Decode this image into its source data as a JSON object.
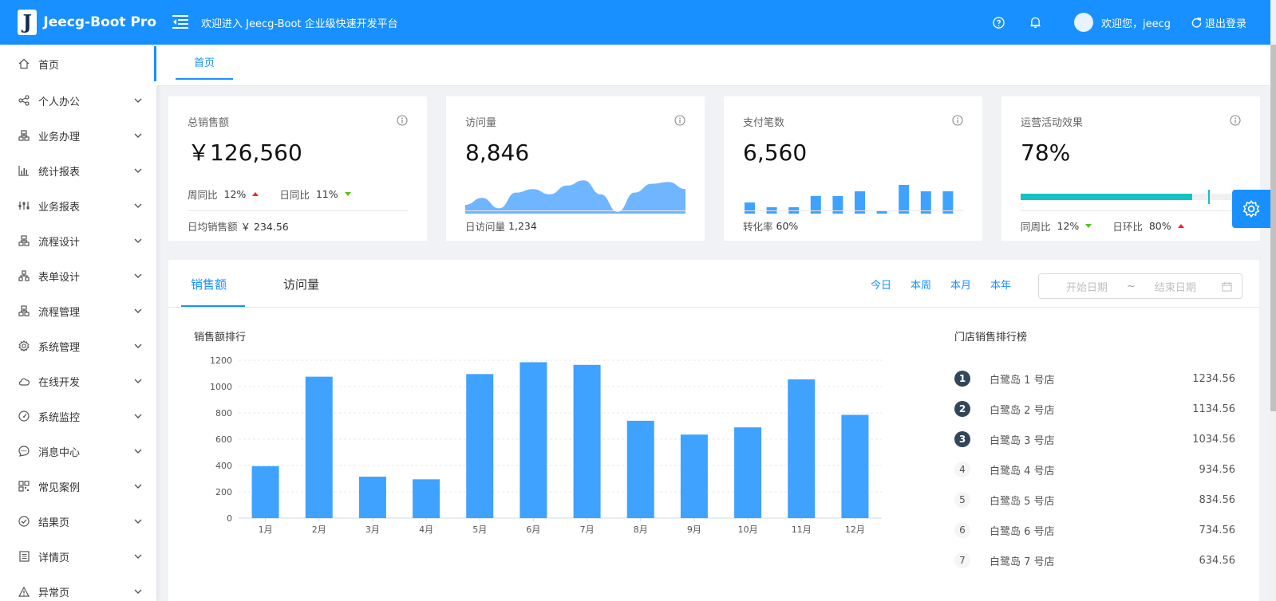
{
  "header": {
    "logo_letter": "J",
    "app_name": "Jeecg-Boot Pro",
    "welcome": "欢迎进入 Jeecg-Boot 企业级快速开发平台",
    "user_greeting": "欢迎您，jeecg",
    "logout": "退出登录",
    "icons": [
      "menu-fold-icon",
      "question-circle-icon",
      "bell-icon",
      "logout-icon"
    ]
  },
  "sidebar": {
    "items": [
      {
        "label": "首页",
        "icon": "home-icon",
        "active": true
      },
      {
        "label": "个人办公",
        "icon": "share-icon"
      },
      {
        "label": "业务办理",
        "icon": "cluster-icon"
      },
      {
        "label": "统计报表",
        "icon": "bar-chart-icon"
      },
      {
        "label": "业务报表",
        "icon": "sliders-icon"
      },
      {
        "label": "流程设计",
        "icon": "cluster-icon"
      },
      {
        "label": "表单设计",
        "icon": "apartment-icon"
      },
      {
        "label": "流程管理",
        "icon": "cluster-icon"
      },
      {
        "label": "系统管理",
        "icon": "setting-icon"
      },
      {
        "label": "在线开发",
        "icon": "cloud-icon"
      },
      {
        "label": "系统监控",
        "icon": "dashboard-icon"
      },
      {
        "label": "消息中心",
        "icon": "message-icon"
      },
      {
        "label": "常见案例",
        "icon": "qrcode-icon"
      },
      {
        "label": "结果页",
        "icon": "check-circle-icon"
      },
      {
        "label": "详情页",
        "icon": "profile-icon"
      },
      {
        "label": "异常页",
        "icon": "warning-icon"
      }
    ]
  },
  "tabs": {
    "home": "首页"
  },
  "cards": {
    "sales": {
      "title": "总销售额",
      "value": "￥126,560",
      "wow_label": "周同比",
      "wow_value": "12%",
      "dod_label": "日同比",
      "dod_value": "11%",
      "footer_label": "日均销售额",
      "footer_value": "￥ 234.56"
    },
    "visits": {
      "title": "访问量",
      "value": "8,846",
      "footer_label": "日访问量",
      "footer_value": "1,234",
      "sparkline": [
        5,
        9,
        3,
        12,
        14,
        11,
        16,
        19,
        11,
        1,
        12,
        17,
        18,
        14
      ]
    },
    "payments": {
      "title": "支付笔数",
      "value": "6,560",
      "footer_label": "转化率",
      "footer_value": "60%",
      "bars": [
        7,
        4,
        4,
        11,
        11,
        14,
        2,
        18,
        14,
        14
      ]
    },
    "ops": {
      "title": "运营活动效果",
      "value": "78%",
      "progress": 0.78,
      "target": 0.85,
      "wow_label": "同周比",
      "wow_value": "12%",
      "dod_label": "日环比",
      "dod_value": "80%",
      "progress_color": "#13c2c2"
    }
  },
  "panel": {
    "tabs": [
      "销售额",
      "访问量"
    ],
    "ranges": [
      "今日",
      "本周",
      "本月",
      "本年"
    ],
    "start_placeholder": "开始日期",
    "separator": "~",
    "end_placeholder": "结束日期",
    "chart_title": "销售额排行",
    "rank_title": "门店销售排行榜",
    "rank": [
      {
        "num": "1",
        "name": "白鹭岛 1 号店",
        "value": "1234.56"
      },
      {
        "num": "2",
        "name": "白鹭岛 2 号店",
        "value": "1134.56"
      },
      {
        "num": "3",
        "name": "白鹭岛 3 号店",
        "value": "1034.56"
      },
      {
        "num": "4",
        "name": "白鹭岛 4 号店",
        "value": "934.56"
      },
      {
        "num": "5",
        "name": "白鹭岛 5 号店",
        "value": "834.56"
      },
      {
        "num": "6",
        "name": "白鹭岛 6 号店",
        "value": "734.56"
      },
      {
        "num": "7",
        "name": "白鹭岛 7 号店",
        "value": "634.56"
      }
    ]
  },
  "chart_data": {
    "type": "bar",
    "title": "销售额排行",
    "categories": [
      "1月",
      "2月",
      "3月",
      "4月",
      "5月",
      "6月",
      "7月",
      "8月",
      "9月",
      "10月",
      "11月",
      "12月"
    ],
    "values": [
      395,
      1075,
      315,
      295,
      1095,
      1185,
      1165,
      740,
      635,
      690,
      1055,
      785
    ],
    "ylim": [
      0,
      1200
    ],
    "yticks": [
      "0",
      "200",
      "400",
      "600",
      "800",
      "1000",
      "1200"
    ],
    "grid": true,
    "bar_color": "#3fa2ff"
  },
  "colors": {
    "primary": "#1890ff",
    "up": "#f5222d",
    "down": "#52c41a",
    "rank_top": "#314659"
  }
}
